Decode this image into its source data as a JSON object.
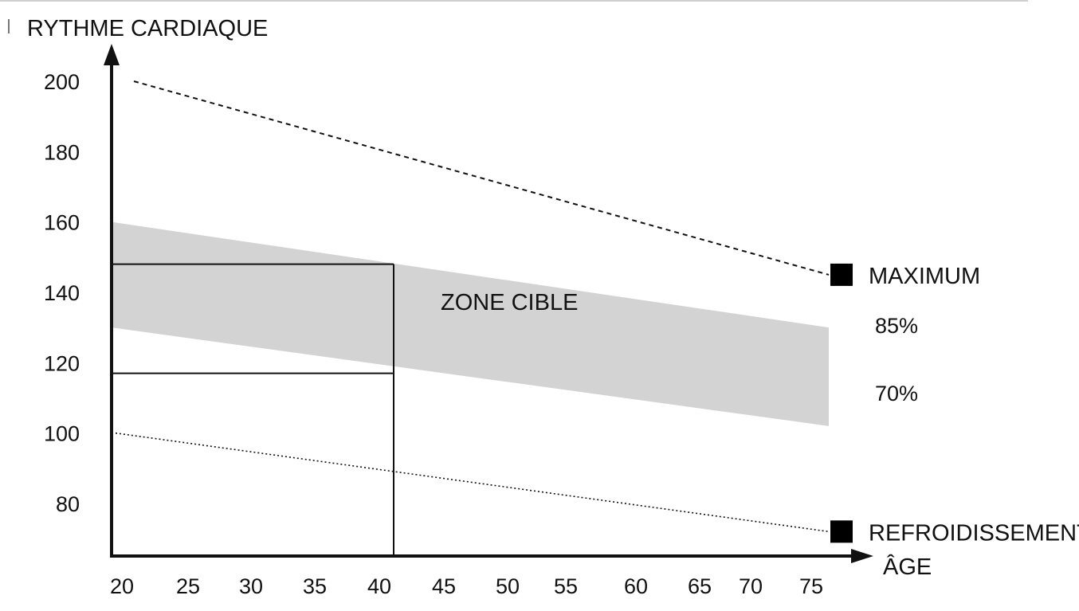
{
  "chart_data": {
    "type": "line",
    "ylabel": "RYTHME CARDIAQUE",
    "xlabel": "ÂGE",
    "x_ticks": [
      20,
      25,
      30,
      35,
      40,
      45,
      50,
      55,
      60,
      65,
      70,
      75
    ],
    "y_ticks": [
      80,
      100,
      120,
      140,
      160,
      180,
      200
    ],
    "series": [
      {
        "name": "MAXIMUM",
        "style": "dashed",
        "x": [
          20,
          75
        ],
        "y": [
          200,
          145
        ]
      },
      {
        "name": "REFROIDISSEMENT",
        "style": "dotted",
        "x": [
          20,
          75
        ],
        "y": [
          100,
          72
        ]
      }
    ],
    "band": {
      "label": "ZONE CIBLE",
      "upper_name": "85%",
      "lower_name": "70%",
      "x": [
        20,
        75
      ],
      "upper": [
        160,
        130
      ],
      "lower": [
        130,
        102
      ]
    },
    "guide": {
      "age": 40,
      "hr_high": 148,
      "hr_low": 117
    },
    "colors": {
      "band": "#d3d3d3",
      "line": "#111111",
      "marker": "#000000"
    }
  }
}
